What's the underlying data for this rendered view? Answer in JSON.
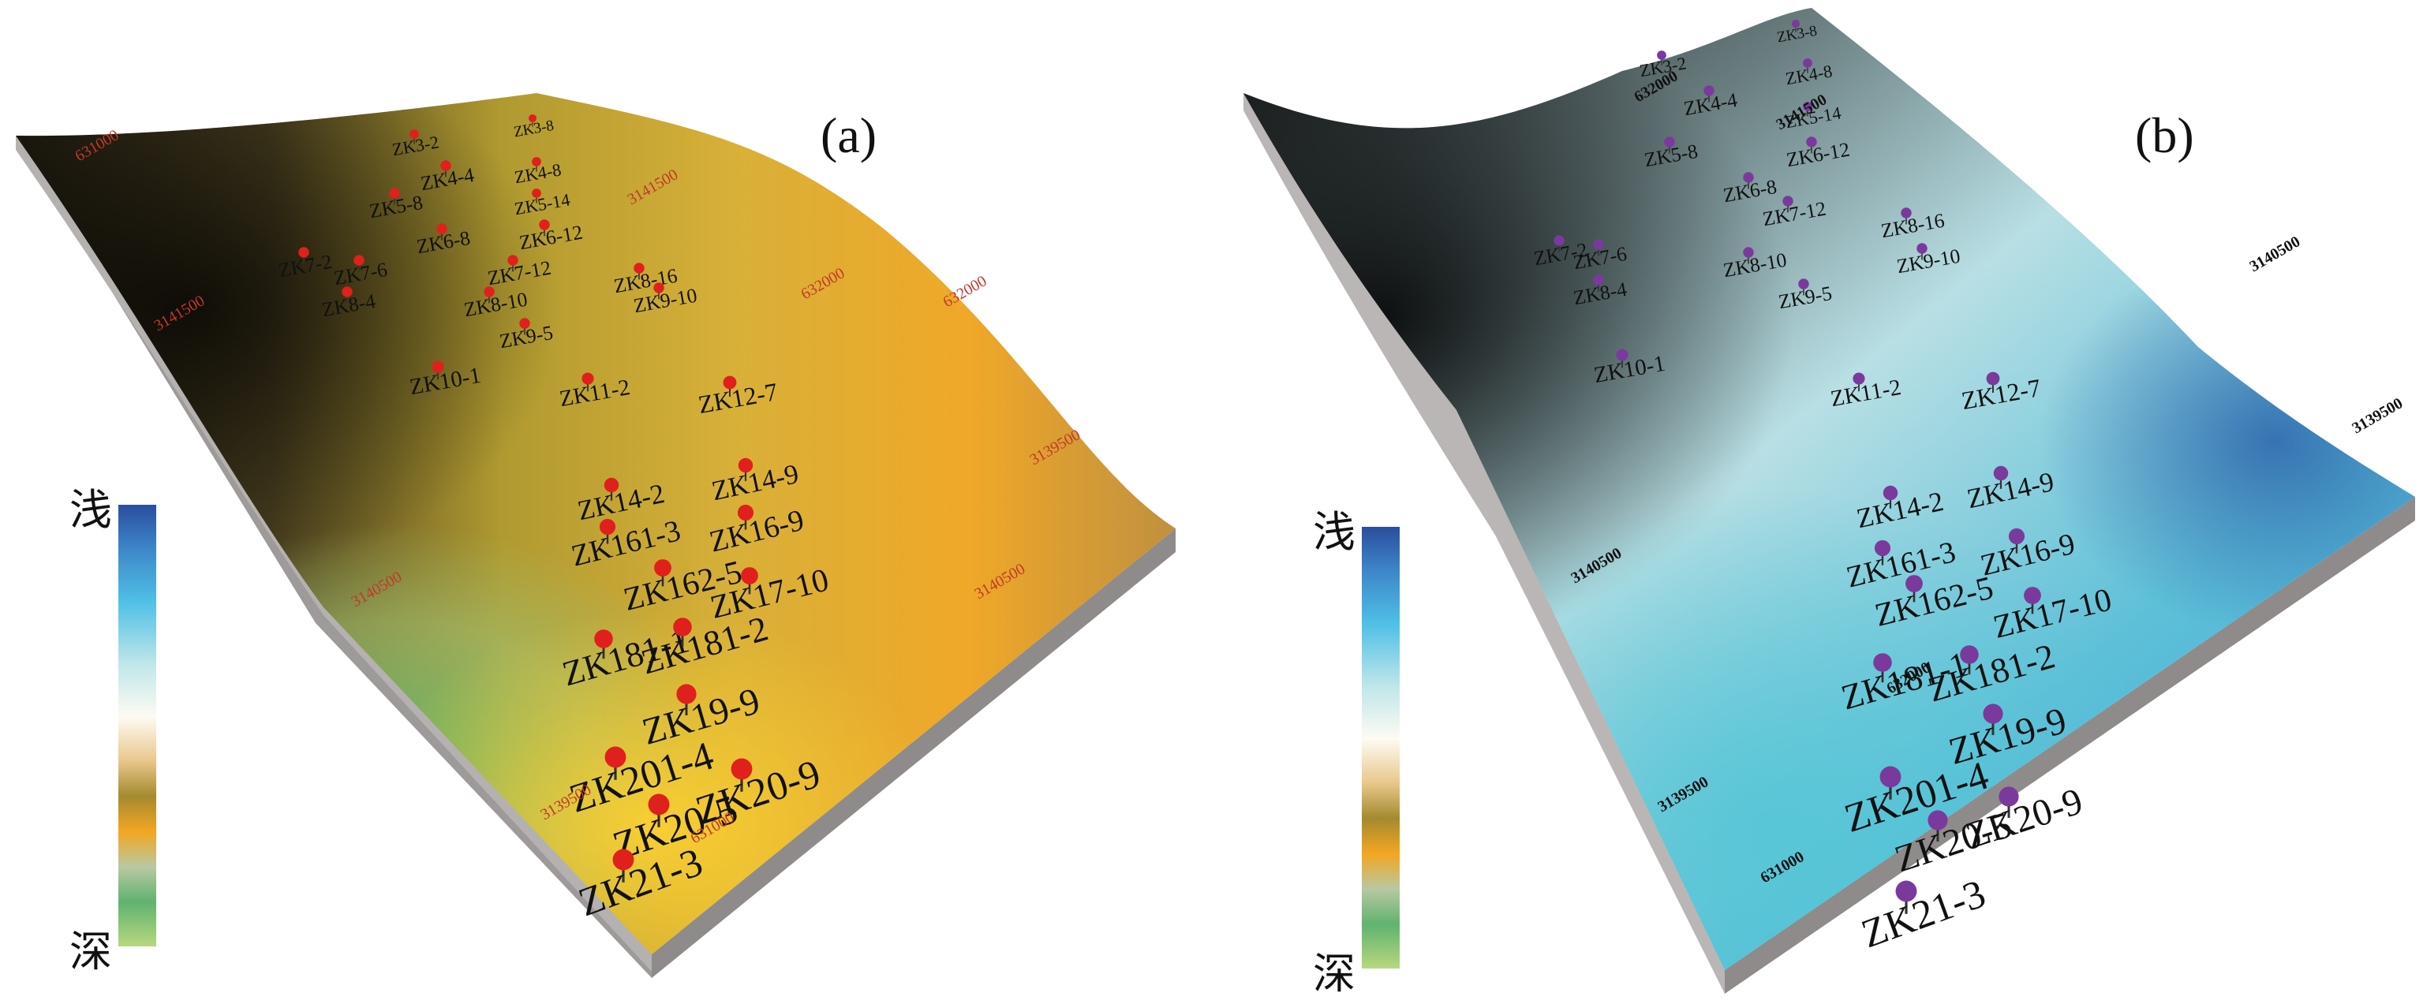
{
  "panels": {
    "a": {
      "label": "(a)",
      "legend": {
        "top": "浅",
        "bottom": "深"
      },
      "wells": [
        {
          "name": "ZK3-2"
        },
        {
          "name": "ZK3-8"
        },
        {
          "name": "ZK4-4"
        },
        {
          "name": "ZK4-8"
        },
        {
          "name": "ZK5-8"
        },
        {
          "name": "ZK5-14"
        },
        {
          "name": "ZK6-8"
        },
        {
          "name": "ZK6-12"
        },
        {
          "name": "ZK7-2"
        },
        {
          "name": "ZK7-6"
        },
        {
          "name": "ZK7-12"
        },
        {
          "name": "ZK8-4"
        },
        {
          "name": "ZK8-10"
        },
        {
          "name": "ZK8-16"
        },
        {
          "name": "ZK9-5"
        },
        {
          "name": "ZK9-10"
        },
        {
          "name": "ZK10-1"
        },
        {
          "name": "ZK11-2"
        },
        {
          "name": "ZK12-7"
        },
        {
          "name": "ZK14-2"
        },
        {
          "name": "ZK14-9"
        },
        {
          "name": "ZK161-3"
        },
        {
          "name": "ZK16-9"
        },
        {
          "name": "ZK162-5"
        },
        {
          "name": "ZK17-10"
        },
        {
          "name": "ZK181-1"
        },
        {
          "name": "ZK181-2"
        },
        {
          "name": "ZK19-9"
        },
        {
          "name": "ZK201-4"
        },
        {
          "name": "ZK20-5"
        },
        {
          "name": "ZK20-9"
        },
        {
          "name": "ZK21-3"
        }
      ],
      "coords": [
        {
          "text": "631000"
        },
        {
          "text": "632000"
        },
        {
          "text": "3141500"
        },
        {
          "text": "3141500"
        },
        {
          "text": "3140500"
        },
        {
          "text": "3139500"
        },
        {
          "text": "3140500"
        },
        {
          "text": "632000"
        },
        {
          "text": "3139500"
        },
        {
          "text": "631000"
        }
      ]
    },
    "b": {
      "label": "(b)",
      "legend": {
        "top": "浅",
        "bottom": "深"
      },
      "wells": [
        {
          "name": "ZK3-2"
        },
        {
          "name": "ZK3-8"
        },
        {
          "name": "ZK4-4"
        },
        {
          "name": "ZK4-8"
        },
        {
          "name": "ZK5-8"
        },
        {
          "name": "ZK5-14"
        },
        {
          "name": "ZK6-8"
        },
        {
          "name": "ZK6-12"
        },
        {
          "name": "ZK7-2"
        },
        {
          "name": "ZK7-6"
        },
        {
          "name": "ZK7-12"
        },
        {
          "name": "ZK8-4"
        },
        {
          "name": "ZK8-10"
        },
        {
          "name": "ZK8-16"
        },
        {
          "name": "ZK9-5"
        },
        {
          "name": "ZK9-10"
        },
        {
          "name": "ZK10-1"
        },
        {
          "name": "ZK11-2"
        },
        {
          "name": "ZK12-7"
        },
        {
          "name": "ZK14-2"
        },
        {
          "name": "ZK14-9"
        },
        {
          "name": "ZK161-3"
        },
        {
          "name": "ZK16-9"
        },
        {
          "name": "ZK162-5"
        },
        {
          "name": "ZK17-10"
        },
        {
          "name": "ZK181-1"
        },
        {
          "name": "ZK181-2"
        },
        {
          "name": "ZK19-9"
        },
        {
          "name": "ZK201-4"
        },
        {
          "name": "ZK20-5"
        },
        {
          "name": "ZK20-9"
        },
        {
          "name": "ZK21-3"
        }
      ],
      "coords": [
        {
          "text": "632000"
        },
        {
          "text": "3141500"
        },
        {
          "text": "3140500"
        },
        {
          "text": "3139500"
        },
        {
          "text": "3140500"
        },
        {
          "text": "632000"
        },
        {
          "text": "3139500"
        },
        {
          "text": "631000"
        }
      ]
    }
  },
  "colors": {
    "marker_a": "#e0201c",
    "marker_b": "#7a3a9c",
    "coord_a": "#c0392b",
    "coord_b": "#111111",
    "box_side": "#9e9a99"
  }
}
